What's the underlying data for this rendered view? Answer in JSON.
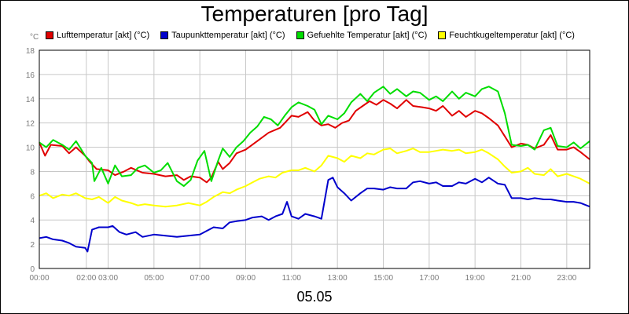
{
  "chart_data": {
    "type": "line",
    "title": "Temperaturen [pro Tag]",
    "y_unit": "°C",
    "date_label": "05.05",
    "ylim": [
      0,
      18
    ],
    "y_ticks": [
      0,
      2,
      4,
      6,
      8,
      10,
      12,
      14,
      16,
      18
    ],
    "xlim": [
      0,
      24
    ],
    "x_ticks": [
      {
        "h": 0,
        "label": "00:00"
      },
      {
        "h": 2.05,
        "label": "02:00"
      },
      {
        "h": 3,
        "label": "03:00"
      },
      {
        "h": 5,
        "label": "05:00"
      },
      {
        "h": 7,
        "label": "07:00"
      },
      {
        "h": 9,
        "label": "09:00"
      },
      {
        "h": 11,
        "label": "11:00"
      },
      {
        "h": 13,
        "label": "13:00"
      },
      {
        "h": 15,
        "label": "15:00"
      },
      {
        "h": 17,
        "label": "17:00"
      },
      {
        "h": 19,
        "label": "19:00"
      },
      {
        "h": 21,
        "label": "21:00"
      },
      {
        "h": 23,
        "label": "23:00"
      }
    ],
    "grid": true,
    "legend_position": "top",
    "series": [
      {
        "name": "Lufttemperatur [akt] (°C)",
        "color": "#e00000",
        "points": [
          [
            0,
            10.4
          ],
          [
            0.25,
            9.3
          ],
          [
            0.5,
            10.2
          ],
          [
            1,
            10.1
          ],
          [
            1.3,
            9.5
          ],
          [
            1.6,
            10.0
          ],
          [
            2,
            9.3
          ],
          [
            2.2,
            8.8
          ],
          [
            2.5,
            8.2
          ],
          [
            3,
            8.1
          ],
          [
            3.3,
            7.7
          ],
          [
            3.7,
            8.0
          ],
          [
            4,
            8.3
          ],
          [
            4.5,
            7.9
          ],
          [
            5,
            7.8
          ],
          [
            5.5,
            7.6
          ],
          [
            6,
            7.7
          ],
          [
            6.3,
            7.3
          ],
          [
            6.6,
            7.6
          ],
          [
            7,
            7.5
          ],
          [
            7.3,
            7.1
          ],
          [
            7.5,
            7.5
          ],
          [
            7.8,
            8.8
          ],
          [
            8,
            8.2
          ],
          [
            8.3,
            8.7
          ],
          [
            8.6,
            9.5
          ],
          [
            9,
            9.8
          ],
          [
            9.5,
            10.5
          ],
          [
            10,
            11.2
          ],
          [
            10.5,
            11.6
          ],
          [
            11,
            12.6
          ],
          [
            11.3,
            12.5
          ],
          [
            11.7,
            12.9
          ],
          [
            12,
            12.2
          ],
          [
            12.3,
            11.8
          ],
          [
            12.6,
            11.9
          ],
          [
            12.9,
            11.6
          ],
          [
            13.2,
            12.0
          ],
          [
            13.5,
            12.2
          ],
          [
            13.8,
            13.0
          ],
          [
            14.1,
            13.4
          ],
          [
            14.4,
            13.8
          ],
          [
            14.7,
            13.5
          ],
          [
            15,
            13.9
          ],
          [
            15.3,
            13.6
          ],
          [
            15.6,
            13.2
          ],
          [
            16,
            13.9
          ],
          [
            16.3,
            13.4
          ],
          [
            16.7,
            13.3
          ],
          [
            17,
            13.2
          ],
          [
            17.3,
            13.0
          ],
          [
            17.6,
            13.4
          ],
          [
            18,
            12.6
          ],
          [
            18.3,
            13.0
          ],
          [
            18.6,
            12.5
          ],
          [
            19,
            13.0
          ],
          [
            19.3,
            12.8
          ],
          [
            19.6,
            12.4
          ],
          [
            20,
            11.8
          ],
          [
            20.3,
            10.9
          ],
          [
            20.6,
            10.0
          ],
          [
            21,
            10.3
          ],
          [
            21.3,
            10.2
          ],
          [
            21.6,
            9.9
          ],
          [
            22,
            10.2
          ],
          [
            22.3,
            11.0
          ],
          [
            22.6,
            9.8
          ],
          [
            23,
            9.8
          ],
          [
            23.3,
            10.0
          ],
          [
            23.6,
            9.6
          ],
          [
            24,
            9.0
          ]
        ]
      },
      {
        "name": "Taupunkttemperatur [akt] (°C)",
        "color": "#0000cc",
        "points": [
          [
            0,
            2.5
          ],
          [
            0.3,
            2.6
          ],
          [
            0.6,
            2.4
          ],
          [
            1,
            2.3
          ],
          [
            1.3,
            2.1
          ],
          [
            1.6,
            1.8
          ],
          [
            2,
            1.7
          ],
          [
            2.1,
            1.4
          ],
          [
            2.3,
            3.2
          ],
          [
            2.6,
            3.4
          ],
          [
            3,
            3.4
          ],
          [
            3.2,
            3.5
          ],
          [
            3.5,
            3.0
          ],
          [
            3.8,
            2.8
          ],
          [
            4.2,
            3.0
          ],
          [
            4.5,
            2.6
          ],
          [
            5,
            2.8
          ],
          [
            5.5,
            2.7
          ],
          [
            6,
            2.6
          ],
          [
            6.5,
            2.7
          ],
          [
            7,
            2.8
          ],
          [
            7.3,
            3.1
          ],
          [
            7.6,
            3.4
          ],
          [
            8,
            3.3
          ],
          [
            8.3,
            3.8
          ],
          [
            8.6,
            3.9
          ],
          [
            9,
            4.0
          ],
          [
            9.3,
            4.2
          ],
          [
            9.7,
            4.3
          ],
          [
            10,
            4.0
          ],
          [
            10.3,
            4.3
          ],
          [
            10.6,
            4.5
          ],
          [
            10.8,
            5.5
          ],
          [
            11,
            4.3
          ],
          [
            11.3,
            4.1
          ],
          [
            11.6,
            4.5
          ],
          [
            12,
            4.3
          ],
          [
            12.3,
            4.1
          ],
          [
            12.6,
            7.3
          ],
          [
            12.8,
            7.5
          ],
          [
            13,
            6.7
          ],
          [
            13.3,
            6.2
          ],
          [
            13.6,
            5.6
          ],
          [
            14,
            6.2
          ],
          [
            14.3,
            6.6
          ],
          [
            14.6,
            6.6
          ],
          [
            15,
            6.5
          ],
          [
            15.3,
            6.7
          ],
          [
            15.6,
            6.6
          ],
          [
            16,
            6.6
          ],
          [
            16.3,
            7.1
          ],
          [
            16.6,
            7.2
          ],
          [
            17,
            7.0
          ],
          [
            17.3,
            7.1
          ],
          [
            17.6,
            6.8
          ],
          [
            18,
            6.8
          ],
          [
            18.3,
            7.1
          ],
          [
            18.6,
            7.0
          ],
          [
            19,
            7.4
          ],
          [
            19.3,
            7.1
          ],
          [
            19.6,
            7.5
          ],
          [
            20,
            7.0
          ],
          [
            20.3,
            6.9
          ],
          [
            20.6,
            5.8
          ],
          [
            21,
            5.8
          ],
          [
            21.3,
            5.7
          ],
          [
            21.6,
            5.8
          ],
          [
            22,
            5.7
          ],
          [
            22.3,
            5.7
          ],
          [
            22.6,
            5.6
          ],
          [
            23,
            5.5
          ],
          [
            23.3,
            5.5
          ],
          [
            23.6,
            5.4
          ],
          [
            24,
            5.1
          ]
        ]
      },
      {
        "name": "Gefuehlte Temperatur [akt] (°C)",
        "color": "#00dd00",
        "points": [
          [
            0,
            10.4
          ],
          [
            0.3,
            10.0
          ],
          [
            0.6,
            10.6
          ],
          [
            1,
            10.2
          ],
          [
            1.3,
            9.8
          ],
          [
            1.6,
            10.5
          ],
          [
            2,
            9.3
          ],
          [
            2.3,
            8.7
          ],
          [
            2.4,
            7.2
          ],
          [
            2.7,
            8.3
          ],
          [
            3,
            7.0
          ],
          [
            3.3,
            8.5
          ],
          [
            3.6,
            7.6
          ],
          [
            4,
            7.7
          ],
          [
            4.3,
            8.3
          ],
          [
            4.6,
            8.5
          ],
          [
            5,
            7.9
          ],
          [
            5.3,
            8.1
          ],
          [
            5.6,
            8.7
          ],
          [
            6,
            7.2
          ],
          [
            6.3,
            6.8
          ],
          [
            6.6,
            7.3
          ],
          [
            6.9,
            8.9
          ],
          [
            7.2,
            9.7
          ],
          [
            7.5,
            7.2
          ],
          [
            7.8,
            8.9
          ],
          [
            8,
            9.9
          ],
          [
            8.3,
            9.2
          ],
          [
            8.6,
            10.0
          ],
          [
            8.9,
            10.5
          ],
          [
            9.2,
            11.2
          ],
          [
            9.5,
            11.7
          ],
          [
            9.8,
            12.5
          ],
          [
            10.1,
            12.3
          ],
          [
            10.4,
            11.8
          ],
          [
            10.7,
            12.6
          ],
          [
            11,
            13.3
          ],
          [
            11.3,
            13.7
          ],
          [
            11.7,
            13.4
          ],
          [
            12,
            13.1
          ],
          [
            12.3,
            11.9
          ],
          [
            12.6,
            12.6
          ],
          [
            13,
            12.3
          ],
          [
            13.3,
            12.8
          ],
          [
            13.6,
            13.7
          ],
          [
            14,
            14.4
          ],
          [
            14.3,
            13.8
          ],
          [
            14.6,
            14.5
          ],
          [
            15,
            15.0
          ],
          [
            15.3,
            14.4
          ],
          [
            15.6,
            14.8
          ],
          [
            16,
            14.2
          ],
          [
            16.3,
            14.6
          ],
          [
            16.6,
            14.5
          ],
          [
            17,
            13.9
          ],
          [
            17.3,
            14.2
          ],
          [
            17.6,
            13.8
          ],
          [
            18,
            14.6
          ],
          [
            18.3,
            14.0
          ],
          [
            18.6,
            14.5
          ],
          [
            19,
            14.2
          ],
          [
            19.3,
            14.8
          ],
          [
            19.6,
            15.0
          ],
          [
            20,
            14.6
          ],
          [
            20.3,
            12.8
          ],
          [
            20.6,
            10.2
          ],
          [
            21,
            10.1
          ],
          [
            21.3,
            10.2
          ],
          [
            21.6,
            9.8
          ],
          [
            22,
            11.4
          ],
          [
            22.3,
            11.6
          ],
          [
            22.6,
            10.1
          ],
          [
            23,
            10.0
          ],
          [
            23.3,
            10.4
          ],
          [
            23.6,
            9.9
          ],
          [
            24,
            10.5
          ]
        ]
      },
      {
        "name": "Feuchtkugeltemperatur [akt] (°C)",
        "color": "#ffff00",
        "points": [
          [
            0,
            6.0
          ],
          [
            0.3,
            6.2
          ],
          [
            0.6,
            5.8
          ],
          [
            1,
            6.1
          ],
          [
            1.3,
            6.0
          ],
          [
            1.6,
            6.2
          ],
          [
            2,
            5.8
          ],
          [
            2.3,
            5.7
          ],
          [
            2.6,
            5.9
          ],
          [
            3,
            5.4
          ],
          [
            3.3,
            5.9
          ],
          [
            3.6,
            5.6
          ],
          [
            4,
            5.4
          ],
          [
            4.3,
            5.2
          ],
          [
            4.6,
            5.3
          ],
          [
            5,
            5.2
          ],
          [
            5.5,
            5.1
          ],
          [
            6,
            5.2
          ],
          [
            6.5,
            5.4
          ],
          [
            7,
            5.2
          ],
          [
            7.3,
            5.5
          ],
          [
            7.6,
            5.9
          ],
          [
            8,
            6.3
          ],
          [
            8.3,
            6.2
          ],
          [
            8.6,
            6.5
          ],
          [
            9,
            6.8
          ],
          [
            9.3,
            7.1
          ],
          [
            9.6,
            7.4
          ],
          [
            10,
            7.6
          ],
          [
            10.3,
            7.5
          ],
          [
            10.6,
            7.9
          ],
          [
            11,
            8.1
          ],
          [
            11.3,
            8.1
          ],
          [
            11.6,
            8.3
          ],
          [
            12,
            8.0
          ],
          [
            12.3,
            8.5
          ],
          [
            12.6,
            9.3
          ],
          [
            13,
            9.1
          ],
          [
            13.3,
            8.8
          ],
          [
            13.6,
            9.3
          ],
          [
            14,
            9.1
          ],
          [
            14.3,
            9.5
          ],
          [
            14.6,
            9.4
          ],
          [
            15,
            9.8
          ],
          [
            15.3,
            9.9
          ],
          [
            15.6,
            9.5
          ],
          [
            16,
            9.7
          ],
          [
            16.3,
            9.9
          ],
          [
            16.6,
            9.6
          ],
          [
            17,
            9.6
          ],
          [
            17.3,
            9.7
          ],
          [
            17.6,
            9.8
          ],
          [
            18,
            9.7
          ],
          [
            18.3,
            9.8
          ],
          [
            18.6,
            9.5
          ],
          [
            19,
            9.6
          ],
          [
            19.3,
            9.8
          ],
          [
            19.6,
            9.5
          ],
          [
            20,
            9.0
          ],
          [
            20.3,
            8.4
          ],
          [
            20.6,
            7.9
          ],
          [
            21,
            8.0
          ],
          [
            21.3,
            8.3
          ],
          [
            21.6,
            7.8
          ],
          [
            22,
            7.7
          ],
          [
            22.3,
            8.2
          ],
          [
            22.6,
            7.6
          ],
          [
            23,
            7.8
          ],
          [
            23.3,
            7.6
          ],
          [
            23.6,
            7.4
          ],
          [
            24,
            7.0
          ]
        ]
      }
    ]
  }
}
